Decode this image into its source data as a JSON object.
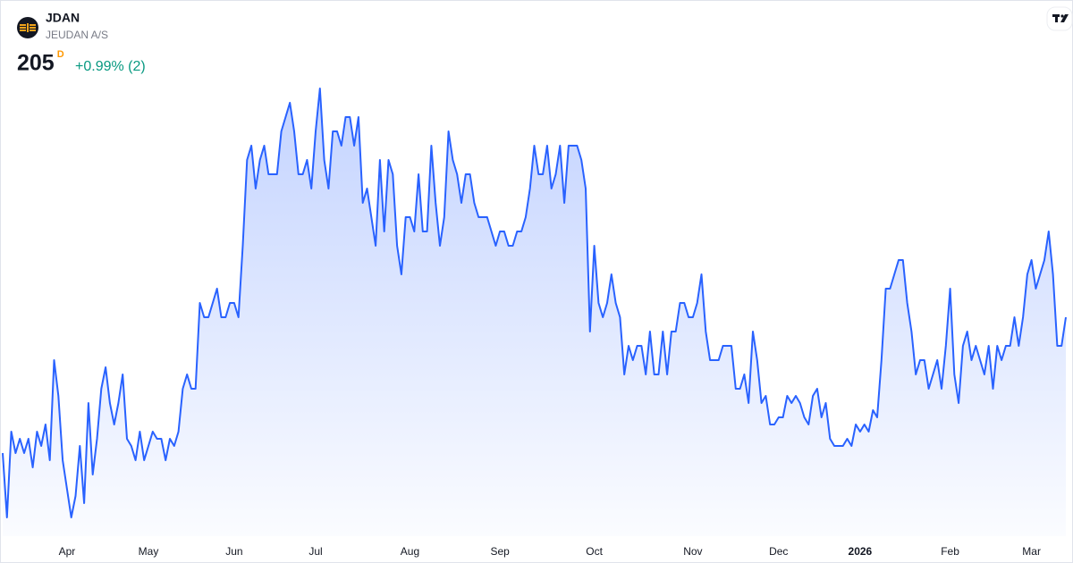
{
  "header": {
    "symbol": "JDAN",
    "name": "JEUDAN A/S",
    "price": "205",
    "badge": "D",
    "change": "+0.99% (2)"
  },
  "chart_data": {
    "type": "area",
    "color": "#2962ff",
    "ylim": [
      188,
      224
    ],
    "categories": [
      null,
      null,
      null,
      null,
      null,
      null,
      null,
      null,
      null,
      null,
      null,
      null,
      null,
      null,
      null,
      "Apr",
      null,
      null,
      null,
      null,
      null,
      null,
      null,
      null,
      null,
      null,
      null,
      null,
      null,
      null,
      null,
      null,
      null,
      null,
      "May",
      null,
      null,
      null,
      null,
      null,
      null,
      null,
      null,
      null,
      null,
      null,
      null,
      null,
      null,
      null,
      null,
      null,
      null,
      null,
      "Jun",
      null,
      null,
      null,
      null,
      null,
      null,
      null,
      null,
      null,
      null,
      null,
      null,
      null,
      null,
      null,
      null,
      null,
      null,
      "Jul",
      null,
      null,
      null,
      null,
      null,
      null,
      null,
      null,
      null,
      null,
      null,
      null,
      null,
      null,
      null,
      null,
      null,
      null,
      null,
      null,
      null,
      "Aug",
      null,
      null,
      null,
      null,
      null,
      null,
      null,
      null,
      null,
      null,
      null,
      null,
      null,
      null,
      null,
      null,
      null,
      null,
      null,
      null,
      "Sep",
      null,
      null,
      null,
      null,
      null,
      null,
      null,
      null,
      null,
      null,
      null,
      null,
      null,
      null,
      null,
      null,
      null,
      null,
      null,
      null,
      null,
      "Oct",
      null,
      null,
      null,
      null,
      null,
      null,
      null,
      null,
      null,
      null,
      null,
      null,
      null,
      null,
      null,
      null,
      null,
      null,
      null,
      null,
      null,
      null,
      "Nov",
      null,
      null,
      null,
      null,
      null,
      null,
      null,
      null,
      null,
      null,
      null,
      null,
      null,
      null,
      null,
      null,
      null,
      null,
      null,
      "Dec",
      null,
      null,
      null,
      null,
      null,
      null,
      null,
      null,
      null,
      null,
      null,
      null,
      null,
      null,
      null,
      null,
      null,
      null,
      "2026",
      null,
      null,
      null,
      null,
      null,
      null,
      null,
      null,
      null,
      null,
      null,
      null,
      null,
      null,
      null,
      null,
      null,
      null,
      null,
      null,
      "Feb",
      null,
      null,
      null,
      null,
      null,
      null,
      null,
      null,
      null,
      null,
      null,
      null,
      null,
      null,
      null,
      null,
      null,
      null,
      "Mar",
      null,
      null,
      null,
      null,
      null,
      null,
      null,
      null
    ],
    "values": [
      195.5,
      191,
      197,
      195.5,
      196.5,
      195.5,
      196.5,
      194.5,
      197,
      196,
      197.5,
      195,
      202,
      199.5,
      195,
      193,
      191,
      192.5,
      196,
      192,
      199,
      194,
      196.5,
      200,
      201.5,
      199,
      197.5,
      199,
      201,
      196.5,
      196,
      195,
      197,
      195,
      196,
      197,
      196.5,
      196.5,
      195,
      196.5,
      196,
      197,
      200,
      201,
      200,
      200,
      206,
      205,
      205,
      206,
      207,
      205,
      205,
      206,
      206,
      205,
      210,
      216,
      217,
      214,
      216,
      217,
      215,
      215,
      215,
      218,
      219,
      220,
      218,
      215,
      215,
      216,
      214,
      218,
      221,
      216,
      214,
      218,
      218,
      217,
      219,
      219,
      217,
      219,
      213,
      214,
      212,
      210,
      216,
      211,
      216,
      215,
      210,
      208,
      212,
      212,
      211,
      215,
      211,
      211,
      217,
      213,
      210,
      212,
      218,
      216,
      215,
      213,
      215,
      215,
      213,
      212,
      212,
      212,
      211,
      210,
      211,
      211,
      210,
      210,
      211,
      211,
      212,
      214,
      217,
      215,
      215,
      217,
      214,
      215,
      217,
      213,
      217,
      217,
      217,
      216,
      214,
      204,
      210,
      206,
      205,
      206,
      208,
      206,
      205,
      201,
      203,
      202,
      203,
      203,
      201,
      204,
      201,
      201,
      204,
      201,
      204,
      204,
      206,
      206,
      205,
      205,
      206,
      208,
      204,
      202,
      202,
      202,
      203,
      203,
      203,
      200,
      200,
      201,
      199,
      204,
      202,
      199,
      199.5,
      197.5,
      197.5,
      198,
      198,
      199.5,
      199,
      199.5,
      199,
      198,
      197.5,
      199.5,
      200,
      198,
      199,
      196.5,
      196,
      196,
      196,
      196.5,
      196,
      197.5,
      197,
      197.5,
      197,
      198.5,
      198,
      202,
      207,
      207,
      208,
      209,
      209,
      206,
      204,
      201,
      202,
      202,
      200,
      201,
      202,
      200,
      203,
      207,
      201,
      199,
      203,
      204,
      202,
      203,
      202,
      201,
      203,
      200,
      203,
      202,
      203,
      203,
      205,
      203,
      205,
      208,
      209,
      207,
      208,
      209,
      211,
      208,
      203,
      203,
      205
    ]
  }
}
